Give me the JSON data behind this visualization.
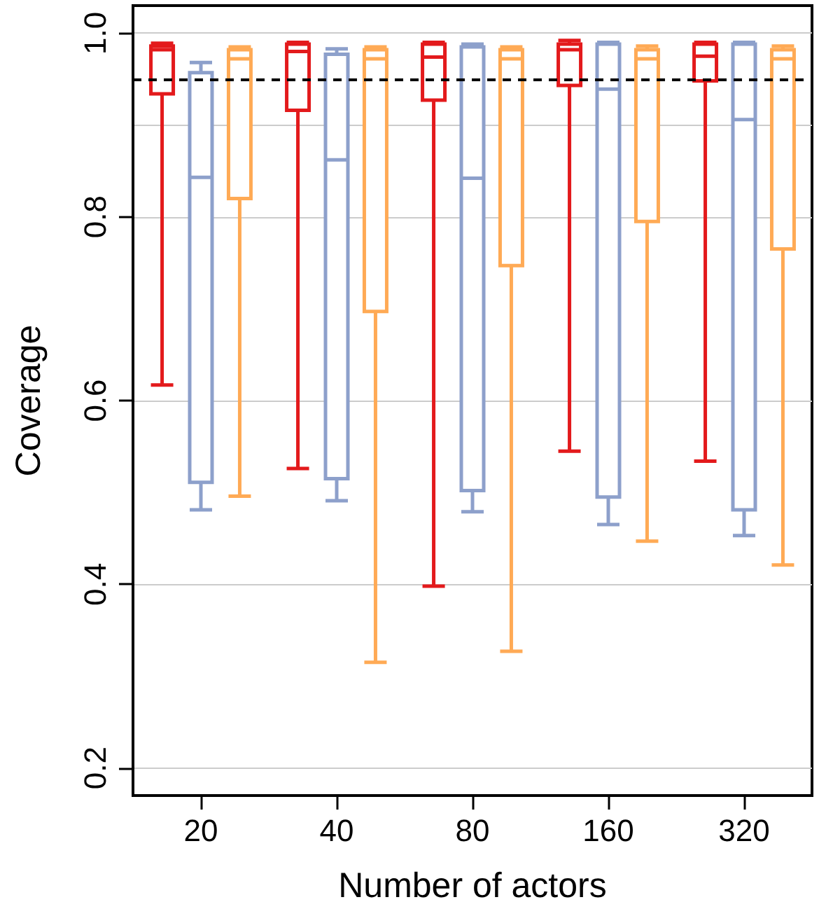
{
  "chart_data": {
    "type": "box",
    "xlabel": "Number of actors",
    "ylabel": "Coverage",
    "categories": [
      "20",
      "40",
      "80",
      "160",
      "320"
    ],
    "ylim": [
      0.17,
      1.03
    ],
    "yticks": [
      0.2,
      0.4,
      0.6,
      0.8,
      {
        "value": 0.9,
        "label": null
      },
      {
        "value": 1,
        "label": "1.0"
      }
    ],
    "grid": "y",
    "ref_lines": [
      {
        "axis": "y",
        "value": 0.95,
        "color": "#000000",
        "line_style": "dashed"
      }
    ],
    "series": [
      {
        "color": "#e31a1c",
        "boxes": [
          {
            "low": 0.617,
            "q1": 0.934,
            "median": 0.982,
            "q3": 0.986,
            "high": 0.989
          },
          {
            "low": 0.526,
            "q1": 0.916,
            "median": 0.98,
            "q3": 0.988,
            "high": 0.99
          },
          {
            "low": 0.398,
            "q1": 0.927,
            "median": 0.974,
            "q3": 0.988,
            "high": 0.99
          },
          {
            "low": 0.545,
            "q1": 0.943,
            "median": 0.982,
            "q3": 0.988,
            "high": 0.992
          },
          {
            "low": 0.534,
            "q1": 0.948,
            "median": 0.975,
            "q3": 0.988,
            "high": 0.99
          }
        ]
      },
      {
        "color": "#8da0cb",
        "boxes": [
          {
            "low": 0.481,
            "q1": 0.511,
            "median": 0.843,
            "q3": 0.957,
            "high": 0.968
          },
          {
            "low": 0.491,
            "q1": 0.515,
            "median": 0.862,
            "q3": 0.977,
            "high": 0.983
          },
          {
            "low": 0.479,
            "q1": 0.502,
            "median": 0.842,
            "q3": 0.985,
            "high": 0.988
          },
          {
            "low": 0.465,
            "q1": 0.495,
            "median": 0.939,
            "q3": 0.988,
            "high": 0.99
          },
          {
            "low": 0.453,
            "q1": 0.481,
            "median": 0.906,
            "q3": 0.988,
            "high": 0.99
          }
        ]
      },
      {
        "color": "#ffaa55",
        "boxes": [
          {
            "low": 0.496,
            "q1": 0.82,
            "median": 0.972,
            "q3": 0.982,
            "high": 0.985
          },
          {
            "low": 0.315,
            "q1": 0.697,
            "median": 0.972,
            "q3": 0.982,
            "high": 0.985
          },
          {
            "low": 0.327,
            "q1": 0.747,
            "median": 0.972,
            "q3": 0.982,
            "high": 0.985
          },
          {
            "low": 0.447,
            "q1": 0.795,
            "median": 0.972,
            "q3": 0.982,
            "high": 0.986
          },
          {
            "low": 0.421,
            "q1": 0.765,
            "median": 0.972,
            "q3": 0.982,
            "high": 0.986
          }
        ]
      }
    ]
  }
}
